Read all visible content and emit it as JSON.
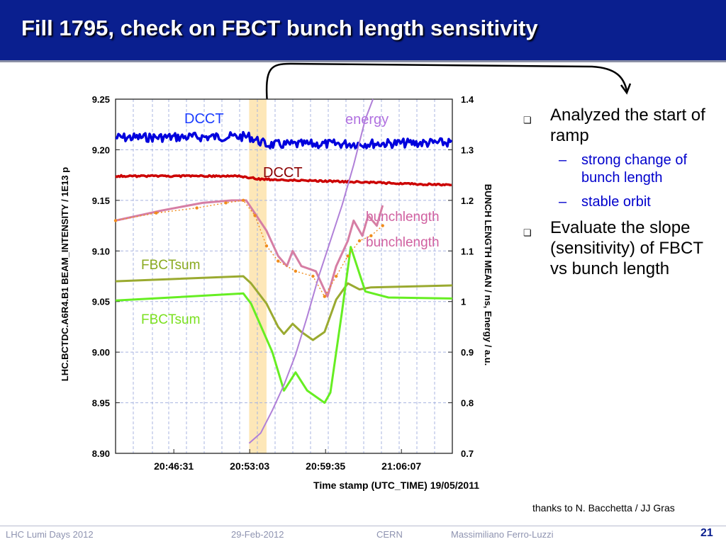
{
  "slide": {
    "title": "Fill 1795, check on FBCT bunch length sensitivity",
    "bullets": [
      {
        "text": "Analyzed the start of ramp",
        "sub": [
          "strong change of bunch length",
          "stable orbit"
        ]
      },
      {
        "text": "Evaluate the slope (sensitivity) of FBCT vs bunch length",
        "sub": []
      }
    ],
    "thanks": "thanks to N. Bacchetta / JJ Gras",
    "footer": {
      "event": "LHC Lumi Days 2012",
      "date": "29-Feb-2012",
      "org": "CERN",
      "author": "Massimiliano Ferro-Luzzi",
      "page": "21"
    },
    "colors": {
      "title_bg": "#0a1f8f",
      "bullet_sub": "#0000cc"
    }
  },
  "chart_data": {
    "type": "line",
    "xlabel": "Time stamp (UTC_TIME) 19/05/2011",
    "ylabel_left": "LHC.BCTDC.A6R4.B1 BEAM_INTENSITY / 1E13 p",
    "ylabel_right": "BUNCH LENGTH MEAN / ns, Energy / a.u.",
    "x_ticks": [
      "20:46:31",
      "20:53:03",
      "20:59:35",
      "21:06:07"
    ],
    "x_range": [
      "20:41:30",
      "21:10:30"
    ],
    "y_left_ticks": [
      "9.25",
      "9.20",
      "9.15",
      "9.10",
      "9.05",
      "9.00",
      "8.95",
      "8.90"
    ],
    "y_left_range": [
      8.9,
      9.25
    ],
    "y_right_ticks": [
      "1.4",
      "1.3",
      "1.2",
      "1.1",
      "1",
      "0.9",
      "0.8",
      "0.7"
    ],
    "y_right_range": [
      0.7,
      1.4
    ],
    "grid": true,
    "highlight_band": [
      "20:53:00",
      "20:54:30"
    ],
    "annotations": [
      {
        "text": "DCCT",
        "color": "#1a3cff"
      },
      {
        "text": "DCCT",
        "color": "#8b0000"
      },
      {
        "text": "energy",
        "color": "#b070e0"
      },
      {
        "text": "bunchlength",
        "color": "#d060a0"
      },
      {
        "text": "bunchlength",
        "color": "#d060a0"
      },
      {
        "text": "FBCTsum",
        "color": "#8aaa20"
      },
      {
        "text": "FBCTsum",
        "color": "#7be020"
      }
    ],
    "series": [
      {
        "axis": "left",
        "color": "#0000dd",
        "width": 3.5,
        "jitter": 0.0045,
        "points": [
          [
            "20:41:30",
            9.212
          ],
          [
            "20:53:00",
            9.213
          ],
          [
            "20:54:30",
            9.205
          ],
          [
            "21:10:30",
            9.207
          ]
        ]
      },
      {
        "axis": "left",
        "color": "#cc0000",
        "width": 3.5,
        "jitter": 0.0008,
        "points": [
          [
            "20:41:30",
            9.174
          ],
          [
            "20:52:00",
            9.174
          ],
          [
            "20:54:00",
            9.171
          ],
          [
            "21:00:00",
            9.169
          ],
          [
            "21:10:30",
            9.165
          ]
        ]
      },
      {
        "axis": "left",
        "color": "#9aaa30",
        "width": 3,
        "points": [
          [
            "20:41:30",
            9.07
          ],
          [
            "20:52:30",
            9.075
          ],
          [
            "20:53:10",
            9.068
          ],
          [
            "20:54:30",
            9.048
          ],
          [
            "20:55:30",
            9.025
          ],
          [
            "20:56:00",
            9.018
          ],
          [
            "20:56:45",
            9.028
          ],
          [
            "20:57:30",
            9.02
          ],
          [
            "20:58:30",
            9.012
          ],
          [
            "20:59:30",
            9.02
          ],
          [
            "21:00:30",
            9.052
          ],
          [
            "21:01:30",
            9.068
          ],
          [
            "21:02:30",
            9.062
          ],
          [
            "21:03:30",
            9.064
          ],
          [
            "21:10:30",
            9.066
          ]
        ]
      },
      {
        "axis": "left",
        "color": "#66ee22",
        "width": 3,
        "points": [
          [
            "20:41:30",
            9.051
          ],
          [
            "20:52:30",
            9.058
          ],
          [
            "20:53:10",
            9.048
          ],
          [
            "20:55:00",
            9.0
          ],
          [
            "20:56:00",
            8.962
          ],
          [
            "20:57:00",
            8.98
          ],
          [
            "20:58:00",
            8.962
          ],
          [
            "20:59:30",
            8.95
          ],
          [
            "21:00:00",
            8.96
          ],
          [
            "21:01:00",
            9.04
          ],
          [
            "21:01:45",
            9.104
          ],
          [
            "21:03:00",
            9.06
          ],
          [
            "21:05:00",
            9.054
          ],
          [
            "21:10:30",
            9.053
          ]
        ]
      },
      {
        "axis": "right",
        "color": "#d67ea4",
        "width": 3,
        "points": [
          [
            "20:41:30",
            1.16
          ],
          [
            "20:45:30",
            1.18
          ],
          [
            "20:49:00",
            1.195
          ],
          [
            "20:51:30",
            1.2
          ],
          [
            "20:52:45",
            1.2
          ],
          [
            "20:53:20",
            1.18
          ],
          [
            "20:54:30",
            1.14
          ],
          [
            "20:55:30",
            1.09
          ],
          [
            "20:56:15",
            1.07
          ],
          [
            "20:56:45",
            1.1
          ],
          [
            "20:57:30",
            1.07
          ],
          [
            "20:58:45",
            1.06
          ],
          [
            "20:59:45",
            1.01
          ],
          [
            "21:00:30",
            1.07
          ],
          [
            "21:01:30",
            1.12
          ],
          [
            "21:02:00",
            1.16
          ],
          [
            "21:02:45",
            1.13
          ],
          [
            "21:03:15",
            1.17
          ],
          [
            "21:04:00",
            1.15
          ],
          [
            "21:04:30",
            1.19
          ]
        ]
      },
      {
        "axis": "right",
        "color": "#f08c1c",
        "width": 1.4,
        "dotted": true,
        "points": [
          [
            "20:41:30",
            1.16
          ],
          [
            "20:45:00",
            1.175
          ],
          [
            "20:48:30",
            1.185
          ],
          [
            "20:51:00",
            1.195
          ],
          [
            "20:52:30",
            1.2
          ],
          [
            "20:53:30",
            1.17
          ],
          [
            "20:54:30",
            1.11
          ],
          [
            "20:55:30",
            1.08
          ],
          [
            "20:57:00",
            1.06
          ],
          [
            "20:58:30",
            1.05
          ],
          [
            "20:59:30",
            1.01
          ],
          [
            "21:00:30",
            1.05
          ],
          [
            "21:01:30",
            1.09
          ],
          [
            "21:02:30",
            1.12
          ],
          [
            "21:03:30",
            1.13
          ],
          [
            "21:04:30",
            1.15
          ]
        ]
      },
      {
        "axis": "right",
        "color": "#b080d8",
        "width": 2,
        "points": [
          [
            "20:53:00",
            0.72
          ],
          [
            "20:54:00",
            0.74
          ],
          [
            "20:55:00",
            0.785
          ],
          [
            "20:56:00",
            0.835
          ],
          [
            "20:57:00",
            0.895
          ],
          [
            "20:58:00",
            0.97
          ],
          [
            "20:59:00",
            1.05
          ],
          [
            "21:00:00",
            1.12
          ],
          [
            "21:01:00",
            1.19
          ],
          [
            "21:02:00",
            1.27
          ],
          [
            "21:03:00",
            1.36
          ],
          [
            "21:03:40",
            1.4
          ]
        ]
      }
    ]
  }
}
